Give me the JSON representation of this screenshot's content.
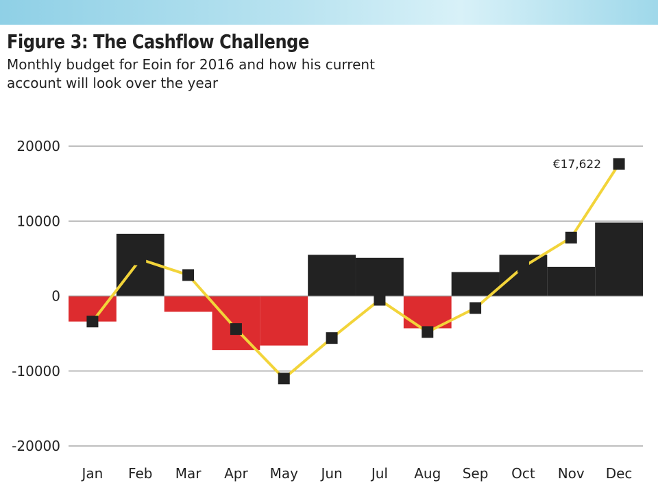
{
  "chart_data": {
    "type": "bar",
    "title": "Figure 3: The Cashflow Challenge",
    "subtitle": "Monthly budget for Eoin for 2016 and how his current account will look over the year",
    "categories": [
      "Jan",
      "Feb",
      "Mar",
      "Apr",
      "May",
      "Jun",
      "Jul",
      "Aug",
      "Sep",
      "Oct",
      "Nov",
      "Dec"
    ],
    "ylim": [
      -20000,
      20000
    ],
    "yticks": [
      "20000",
      "10000",
      "0",
      "-10000",
      "-20000"
    ],
    "ytick_values": [
      20000,
      10000,
      0,
      -10000,
      -20000
    ],
    "grid": true,
    "series": [
      {
        "kind": "bar",
        "values": [
          -3400,
          8300,
          -2100,
          -7200,
          -6600,
          5500,
          5100,
          -4300,
          3200,
          5500,
          3900,
          9800
        ]
      },
      {
        "kind": "line",
        "values": [
          -3400,
          4900,
          2800,
          -4400,
          -11000,
          -5600,
          -500,
          -4800,
          -1600,
          3900,
          7800,
          17622
        ]
      }
    ],
    "annotations": [
      {
        "text": "€17,622",
        "category": "Dec"
      }
    ],
    "colors": {
      "positive_bar": "#222222",
      "negative_bar": "#dd2c2f",
      "line": "#f2d43a",
      "marker": "#222222",
      "grid": "#a8a8a8",
      "text": "#222222"
    }
  }
}
